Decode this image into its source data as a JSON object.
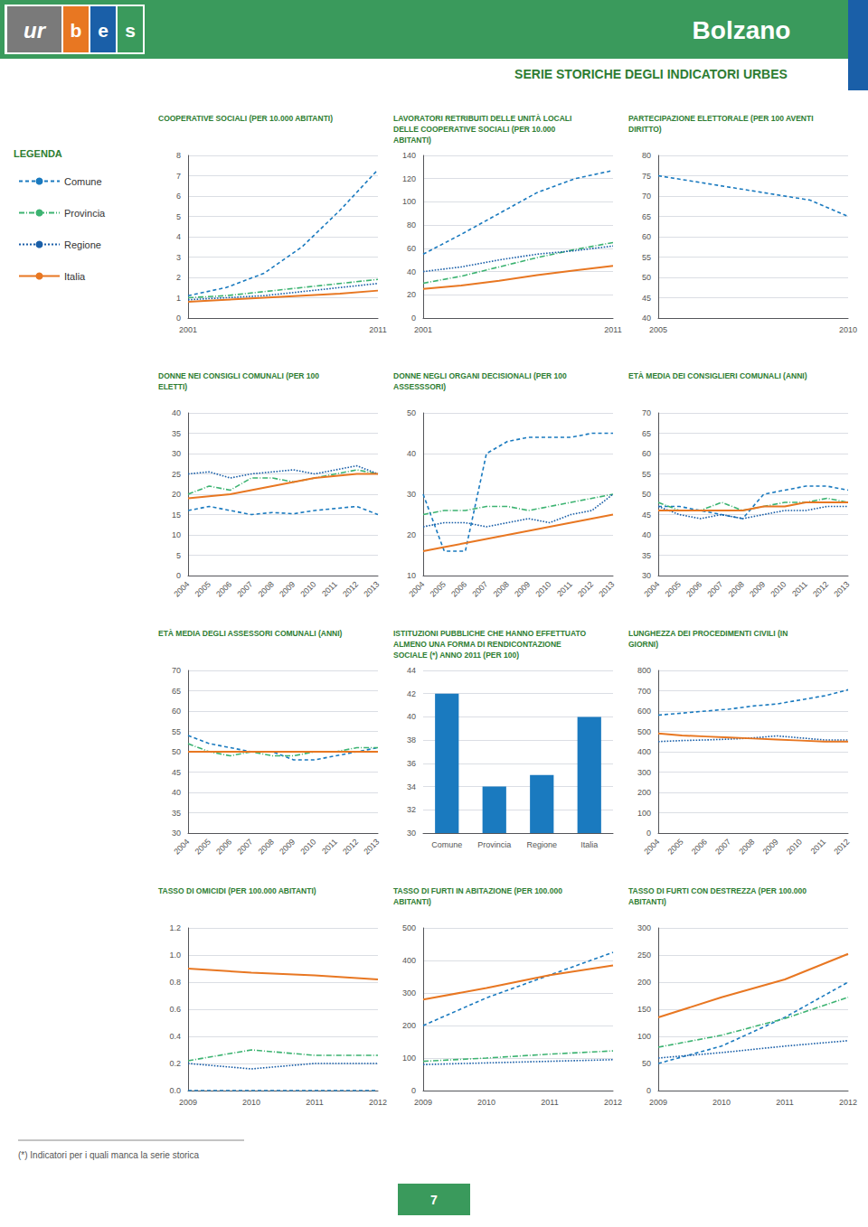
{
  "title": "Bolzano",
  "subtitle": "SERIE STORICHE DEGLI INDICATORI URBES",
  "annotations": [
    "ur",
    "b",
    "e",
    "s",
    "LEGENDA",
    "(*) Indicatori per i quali manca la serie storica",
    "7"
  ],
  "legend": "left",
  "chart_data": [
    {
      "type": "line",
      "title": "COOPERATIVE SOCIALI (PER 10.000 ABITANTI)",
      "xlim": [
        2001,
        2011
      ],
      "ylim": [
        0,
        8
      ],
      "xticks": [
        2001,
        2011
      ],
      "yticks": [
        0,
        1,
        2,
        3,
        4,
        5,
        6,
        7,
        8
      ],
      "grid": true,
      "x": [
        2001,
        2003,
        2005,
        2007,
        2009,
        2011
      ],
      "series": [
        {
          "name": "Comune",
          "color": "#1a7abf",
          "line_style": "dashed",
          "values": [
            1.1,
            1.5,
            2.2,
            3.5,
            5.3,
            7.3
          ]
        },
        {
          "name": "Provincia",
          "color": "#3cb371",
          "line_style": "dashdot",
          "values": [
            1.0,
            1.1,
            1.3,
            1.5,
            1.7,
            1.9
          ]
        },
        {
          "name": "Regione",
          "color": "#1a5fa8",
          "line_style": "dotted",
          "values": [
            0.9,
            1.0,
            1.1,
            1.3,
            1.5,
            1.7
          ]
        },
        {
          "name": "Italia",
          "color": "#e87722",
          "line_style": "solid",
          "values": [
            0.8,
            0.9,
            1.0,
            1.1,
            1.2,
            1.35
          ]
        }
      ]
    },
    {
      "type": "line",
      "title": "LAVORATORI RETRIBUITI DELLE UNITÀ LOCALI\nDELLE COOPERATIVE SOCIALI (PER 10.000\nABITANTI)",
      "xlim": [
        2001,
        2011
      ],
      "ylim": [
        0,
        140
      ],
      "xticks": [
        2001,
        2011
      ],
      "yticks": [
        0,
        20,
        40,
        60,
        80,
        100,
        120,
        140
      ],
      "grid": true,
      "x": [
        2001,
        2003,
        2005,
        2007,
        2009,
        2011
      ],
      "series": [
        {
          "name": "Comune",
          "color": "#1a7abf",
          "line_style": "dashed",
          "values": [
            55,
            72,
            90,
            108,
            120,
            127
          ]
        },
        {
          "name": "Provincia",
          "color": "#3cb371",
          "line_style": "dashdot",
          "values": [
            30,
            36,
            44,
            52,
            59,
            65
          ]
        },
        {
          "name": "Regione",
          "color": "#1a5fa8",
          "line_style": "dotted",
          "values": [
            40,
            44,
            50,
            55,
            58,
            62
          ]
        },
        {
          "name": "Italia",
          "color": "#e87722",
          "line_style": "solid",
          "values": [
            25,
            28,
            32,
            37,
            41,
            45
          ]
        }
      ]
    },
    {
      "type": "line",
      "title": "PARTECIPAZIONE ELETTORALE (PER 100 AVENTI\nDIRITTO)",
      "xlim": [
        2005,
        2010
      ],
      "ylim": [
        40,
        80
      ],
      "xticks": [
        2005,
        2010
      ],
      "yticks": [
        40,
        45,
        50,
        55,
        60,
        65,
        70,
        75,
        80
      ],
      "grid": true,
      "x": [
        2005,
        2009,
        2010
      ],
      "series": [
        {
          "name": "Comune",
          "color": "#1a7abf",
          "line_style": "dashed",
          "values": [
            75,
            69,
            65
          ]
        }
      ]
    },
    {
      "type": "line",
      "title": "DONNE NEI CONSIGLI COMUNALI (PER 100\nELETTI)",
      "xlim": [
        2004,
        2013
      ],
      "ylim": [
        0,
        40
      ],
      "xticks": [
        2004,
        2005,
        2006,
        2007,
        2008,
        2009,
        2010,
        2011,
        2012,
        2013
      ],
      "yticks": [
        0,
        5,
        10,
        15,
        20,
        25,
        30,
        35,
        40
      ],
      "grid": true,
      "x": [
        2004,
        2005,
        2006,
        2007,
        2008,
        2009,
        2010,
        2011,
        2012,
        2013
      ],
      "series": [
        {
          "name": "Comune",
          "color": "#1a7abf",
          "line_style": "dashed",
          "values": [
            16,
            17,
            16,
            15,
            15.5,
            15.2,
            16,
            16.5,
            17,
            15
          ]
        },
        {
          "name": "Provincia",
          "color": "#3cb371",
          "line_style": "dashdot",
          "values": [
            20,
            22,
            21,
            24,
            24,
            23,
            24,
            25,
            26,
            25
          ]
        },
        {
          "name": "Regione",
          "color": "#1a5fa8",
          "line_style": "dotted",
          "values": [
            25,
            25.5,
            24,
            25,
            25.5,
            26,
            25,
            26,
            27,
            25
          ]
        },
        {
          "name": "Italia",
          "color": "#e87722",
          "line_style": "solid",
          "values": [
            19,
            19.5,
            20,
            21,
            22,
            23,
            24,
            24.5,
            25,
            25
          ]
        }
      ]
    },
    {
      "type": "line",
      "title": "DONNE NEGLI ORGANI DECISIONALI (PER 100\nASSESSSORI)",
      "xlim": [
        2004,
        2013
      ],
      "ylim": [
        10,
        50
      ],
      "xticks": [
        2004,
        2005,
        2006,
        2007,
        2008,
        2009,
        2010,
        2011,
        2012,
        2013
      ],
      "yticks": [
        10,
        20,
        30,
        40,
        50
      ],
      "grid": true,
      "x": [
        2004,
        2005,
        2006,
        2007,
        2008,
        2009,
        2010,
        2011,
        2012,
        2013
      ],
      "series": [
        {
          "name": "Comune",
          "color": "#1a7abf",
          "line_style": "dashed",
          "values": [
            30,
            16,
            16,
            40,
            43,
            44,
            44,
            44,
            45,
            45
          ]
        },
        {
          "name": "Provincia",
          "color": "#3cb371",
          "line_style": "dashdot",
          "values": [
            25,
            26,
            26,
            27,
            27,
            26,
            27,
            28,
            29,
            30
          ]
        },
        {
          "name": "Regione",
          "color": "#1a5fa8",
          "line_style": "dotted",
          "values": [
            22,
            23,
            23,
            22,
            23,
            24,
            23,
            25,
            26,
            30
          ]
        },
        {
          "name": "Italia",
          "color": "#e87722",
          "line_style": "solid",
          "values": [
            16,
            17,
            18,
            19,
            20,
            21,
            22,
            23,
            24,
            25
          ]
        }
      ]
    },
    {
      "type": "line",
      "title": "ETÀ MEDIA DEI CONSIGLIERI COMUNALI (ANNI)",
      "xlim": [
        2004,
        2013
      ],
      "ylim": [
        30,
        70
      ],
      "xticks": [
        2004,
        2005,
        2006,
        2007,
        2008,
        2009,
        2010,
        2011,
        2012,
        2013
      ],
      "yticks": [
        30,
        35,
        40,
        45,
        50,
        55,
        60,
        65,
        70
      ],
      "grid": true,
      "x": [
        2004,
        2005,
        2006,
        2007,
        2008,
        2009,
        2010,
        2011,
        2012,
        2013
      ],
      "series": [
        {
          "name": "Comune",
          "color": "#1a7abf",
          "line_style": "dashed",
          "values": [
            47,
            47,
            46,
            45,
            44,
            50,
            51,
            52,
            52,
            51
          ]
        },
        {
          "name": "Provincia",
          "color": "#3cb371",
          "line_style": "dashdot",
          "values": [
            48,
            46,
            46,
            48,
            46,
            47,
            48,
            48,
            49,
            48
          ]
        },
        {
          "name": "Regione",
          "color": "#1a5fa8",
          "line_style": "dotted",
          "values": [
            47,
            45,
            44,
            45,
            44,
            45,
            46,
            46,
            47,
            47
          ]
        },
        {
          "name": "Italia",
          "color": "#e87722",
          "line_style": "solid",
          "values": [
            46,
            46,
            46,
            46,
            46,
            47,
            47,
            48,
            48,
            48
          ]
        }
      ]
    },
    {
      "type": "line",
      "title": "ETÀ MEDIA DEGLI ASSESSORI COMUNALI (ANNI)",
      "xlim": [
        2004,
        2013
      ],
      "ylim": [
        30,
        70
      ],
      "xticks": [
        2004,
        2005,
        2006,
        2007,
        2008,
        2009,
        2010,
        2011,
        2012,
        2013
      ],
      "yticks": [
        30,
        35,
        40,
        45,
        50,
        55,
        60,
        65,
        70
      ],
      "grid": true,
      "x": [
        2004,
        2005,
        2006,
        2007,
        2008,
        2009,
        2010,
        2011,
        2012,
        2013
      ],
      "series": [
        {
          "name": "Comune",
          "color": "#1a7abf",
          "line_style": "dashed",
          "values": [
            54,
            52,
            51,
            50,
            50,
            48,
            48,
            49,
            50,
            51
          ]
        },
        {
          "name": "Provincia",
          "color": "#3cb371",
          "line_style": "dashdot",
          "values": [
            52,
            50,
            49,
            50,
            49,
            49,
            50,
            50,
            51,
            51
          ]
        },
        {
          "name": "Regione",
          "color": "#1a5fa8",
          "line_style": "dotted",
          "values": [
            50,
            50,
            50,
            50,
            50,
            50,
            50,
            50,
            50,
            50
          ]
        },
        {
          "name": "Italia",
          "color": "#e87722",
          "line_style": "solid",
          "values": [
            50,
            50,
            50,
            50,
            50,
            50,
            50,
            50,
            50,
            50
          ]
        }
      ]
    },
    {
      "type": "bar",
      "title": "ISTITUZIONI PUBBLICHE CHE HANNO EFFETTUATO\nALMENO UNA FORMA DI RENDICONTAZIONE\nSOCIALE (*) ANNO 2011 (PER 100)",
      "categories": [
        "Comune",
        "Provincia",
        "Regione",
        "Italia"
      ],
      "values": [
        42,
        34,
        35,
        40
      ],
      "color": "#1a7abf",
      "ylim": [
        30,
        44
      ],
      "yticks": [
        30,
        32,
        34,
        36,
        38,
        40,
        42,
        44
      ],
      "grid": true
    },
    {
      "type": "line",
      "title": "LUNGHEZZA DEI PROCEDIMENTI CIVILI (IN\nGIORNI)",
      "xlim": [
        2004,
        2012
      ],
      "ylim": [
        0,
        800
      ],
      "xticks": [
        2004,
        2005,
        2006,
        2007,
        2008,
        2009,
        2010,
        2011,
        2012
      ],
      "yticks": [
        0,
        100,
        200,
        300,
        400,
        500,
        600,
        700,
        800
      ],
      "grid": true,
      "x": [
        2004,
        2005,
        2006,
        2007,
        2008,
        2009,
        2010,
        2011,
        2012
      ],
      "series": [
        {
          "name": "Comune",
          "color": "#1a7abf",
          "line_style": "dashed",
          "values": [
            580,
            590,
            600,
            610,
            625,
            635,
            655,
            675,
            705
          ]
        },
        {
          "name": "Regione",
          "color": "#1a5fa8",
          "line_style": "dotted",
          "values": [
            450,
            455,
            458,
            462,
            468,
            478,
            468,
            458,
            458
          ]
        },
        {
          "name": "Italia",
          "color": "#e87722",
          "line_style": "solid",
          "values": [
            490,
            480,
            475,
            470,
            465,
            460,
            455,
            450,
            450
          ]
        }
      ]
    },
    {
      "type": "line",
      "title": "TASSO DI OMICIDI (PER 100.000 ABITANTI)",
      "xlim": [
        2009,
        2012
      ],
      "ylim": [
        0,
        1.2
      ],
      "xticks": [
        2009,
        2010,
        2011,
        2012
      ],
      "yticks": [
        {
          "value": 0,
          "label": "0.0"
        },
        0.2,
        0.4,
        0.6,
        0.8,
        {
          "value": 1,
          "label": "1.0"
        },
        1.2
      ],
      "grid": true,
      "x": [
        2009,
        2010,
        2011,
        2012
      ],
      "series": [
        {
          "name": "Comune",
          "color": "#1a7abf",
          "line_style": "dashed",
          "values": [
            0.0,
            0.0,
            0.0,
            0.0
          ]
        },
        {
          "name": "Provincia",
          "color": "#3cb371",
          "line_style": "dashdot",
          "values": [
            0.22,
            0.3,
            0.26,
            0.26
          ]
        },
        {
          "name": "Regione",
          "color": "#1a5fa8",
          "line_style": "dotted",
          "values": [
            0.2,
            0.16,
            0.2,
            0.2
          ]
        },
        {
          "name": "Italia",
          "color": "#e87722",
          "line_style": "solid",
          "values": [
            0.9,
            0.87,
            0.85,
            0.82
          ]
        }
      ]
    },
    {
      "type": "line",
      "title": "TASSO DI FURTI IN ABITAZIONE (PER 100.000\nABITANTI)",
      "xlim": [
        2009,
        2012
      ],
      "ylim": [
        0,
        500
      ],
      "xticks": [
        2009,
        2010,
        2011,
        2012
      ],
      "yticks": [
        0,
        100,
        200,
        300,
        400,
        500
      ],
      "grid": true,
      "x": [
        2009,
        2010,
        2011,
        2012
      ],
      "series": [
        {
          "name": "Comune",
          "color": "#1a7abf",
          "line_style": "dashed",
          "values": [
            200,
            285,
            355,
            425
          ]
        },
        {
          "name": "Provincia",
          "color": "#3cb371",
          "line_style": "dashdot",
          "values": [
            90,
            100,
            112,
            122
          ]
        },
        {
          "name": "Regione",
          "color": "#1a5fa8",
          "line_style": "dotted",
          "values": [
            80,
            85,
            90,
            95
          ]
        },
        {
          "name": "Italia",
          "color": "#e87722",
          "line_style": "solid",
          "values": [
            280,
            315,
            355,
            385
          ]
        }
      ]
    },
    {
      "type": "line",
      "title": "TASSO DI FURTI CON DESTREZZA (PER 100.000\nABITANTI)",
      "xlim": [
        2009,
        2012
      ],
      "ylim": [
        0,
        300
      ],
      "xticks": [
        2009,
        2010,
        2011,
        2012
      ],
      "yticks": [
        0,
        50,
        100,
        150,
        200,
        250,
        300
      ],
      "grid": true,
      "x": [
        2009,
        2010,
        2011,
        2012
      ],
      "series": [
        {
          "name": "Comune",
          "color": "#1a7abf",
          "line_style": "dashed",
          "values": [
            50,
            82,
            135,
            200
          ]
        },
        {
          "name": "Provincia",
          "color": "#3cb371",
          "line_style": "dashdot",
          "values": [
            80,
            102,
            133,
            172
          ]
        },
        {
          "name": "Regione",
          "color": "#1a5fa8",
          "line_style": "dotted",
          "values": [
            60,
            70,
            82,
            92
          ]
        },
        {
          "name": "Italia",
          "color": "#e87722",
          "line_style": "solid",
          "values": [
            135,
            172,
            205,
            252
          ]
        }
      ]
    }
  ]
}
